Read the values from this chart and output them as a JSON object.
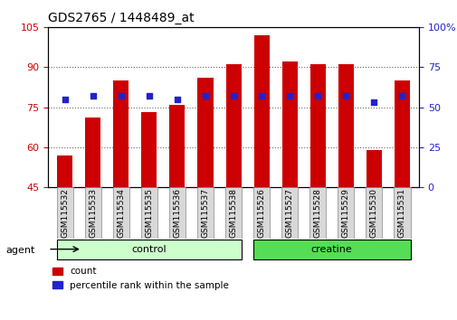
{
  "title": "GDS2765 / 1448489_at",
  "samples": [
    "GSM115532",
    "GSM115533",
    "GSM115534",
    "GSM115535",
    "GSM115536",
    "GSM115537",
    "GSM115538",
    "GSM115526",
    "GSM115527",
    "GSM115528",
    "GSM115529",
    "GSM115530",
    "GSM115531"
  ],
  "count_values": [
    57,
    71,
    85,
    73,
    76,
    86,
    91,
    102,
    92,
    91,
    91,
    59,
    85
  ],
  "percentile_values": [
    55,
    57,
    57,
    57,
    55,
    57,
    57,
    57,
    57,
    57,
    57,
    53,
    57
  ],
  "bar_color": "#CC0000",
  "dot_color": "#2222CC",
  "ylim_left": [
    45,
    105
  ],
  "ylim_right": [
    0,
    100
  ],
  "yticks_left": [
    45,
    60,
    75,
    90,
    105
  ],
  "yticks_right": [
    0,
    25,
    50,
    75,
    100
  ],
  "groups": [
    {
      "label": "control",
      "indices": [
        0,
        1,
        2,
        3,
        4,
        5,
        6
      ],
      "color": "#ccffcc"
    },
    {
      "label": "creatine",
      "indices": [
        7,
        8,
        9,
        10,
        11,
        12
      ],
      "color": "#55dd55"
    }
  ],
  "group_label": "agent",
  "legend_count_label": "count",
  "legend_pct_label": "percentile rank within the sample",
  "bar_width": 0.55,
  "tick_label_fontsize": 6.5,
  "title_fontsize": 10,
  "left_axis_color": "#CC0000",
  "right_axis_color": "#2222CC",
  "ytick_fontsize": 8,
  "label_box_color": "#d8d8d8",
  "label_box_edge": "#888888"
}
